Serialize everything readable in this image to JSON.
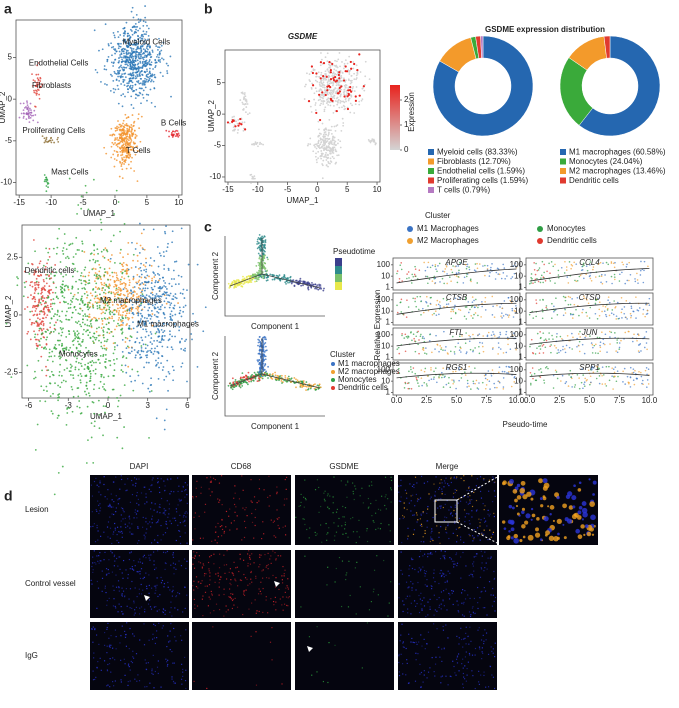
{
  "panel_labels": [
    "a",
    "b",
    "c",
    "d"
  ],
  "chart_data": [
    {
      "type": "umap",
      "xlabel": "UMAP_1",
      "ylabel": "UMAP_2",
      "xlim": [
        -15.5,
        10.5
      ],
      "ylim": [
        -11.5,
        9.5
      ],
      "xticks": [
        -15,
        -10,
        -5,
        0,
        5,
        10
      ],
      "yticks": [
        -10,
        -5,
        0,
        5
      ],
      "clusters": [
        {
          "name": "Myeloid Cells",
          "color": "#2b77b7"
        },
        {
          "name": "Endothelial Cells",
          "color": "#e0433b"
        },
        {
          "name": "Fibroblasts",
          "color": "#a565b8"
        },
        {
          "name": "Proliferating Cells",
          "color": "#8c6d31"
        },
        {
          "name": "T Cells",
          "color": "#f2922c"
        },
        {
          "name": "B Cells",
          "color": "#e3262d"
        },
        {
          "name": "Mast Cells",
          "color": "#2ca342"
        }
      ]
    },
    {
      "type": "umap",
      "xlabel": "UMAP_1",
      "ylabel": "UMAP_2",
      "xlim": [
        -6.5,
        6.2
      ],
      "ylim": [
        -3.6,
        3.9
      ],
      "xticks": [
        -6,
        -3,
        0,
        3,
        6
      ],
      "yticks": [
        -2.5,
        0,
        2.5
      ],
      "clusters": [
        {
          "name": "Dendritic cells",
          "color": "#e0433b"
        },
        {
          "name": "M2 macrophages",
          "color": "#f2922c"
        },
        {
          "name": "M1 macrophages",
          "color": "#2b77b7"
        },
        {
          "name": "Monocytes",
          "color": "#37a83f"
        }
      ]
    },
    {
      "type": "feature",
      "title": "GSDME",
      "xlabel": "UMAP_1",
      "ylabel": "UMAP_2",
      "xlim": [
        -15.5,
        10.5
      ],
      "ylim": [
        -10.8,
        10.2
      ],
      "xticks": [
        -15,
        -10,
        -5,
        0,
        5,
        10
      ],
      "yticks": [
        -10,
        -5,
        0,
        5
      ],
      "colorbar_label": "Expression",
      "colorbar_lim": [
        0,
        2.6
      ],
      "colorbar_ticks": [
        0,
        1,
        2
      ],
      "colors": [
        "#d4d4d4",
        "#e8231e"
      ]
    },
    {
      "type": "donut",
      "title": "GSDME expression distribution",
      "categories": [
        "Myeloid cells (83.33%)",
        "Fibroblasts (12.70%)",
        "Endothelial cells (1.59%)",
        "Proliferating cells (1.59%)",
        "T cells (0.79%)"
      ],
      "values": [
        83.33,
        12.7,
        1.59,
        1.59,
        0.79
      ],
      "colors": [
        "#2567b0",
        "#f39a2b",
        "#3aaa3a",
        "#e03a2f",
        "#b57ac2"
      ]
    },
    {
      "type": "donut",
      "categories": [
        "M1 macrophages (60.58%)",
        "Monocytes (24.04%)",
        "M2 macrophages (13.46%)",
        "Dendritic cells"
      ],
      "values": [
        60.58,
        24.04,
        13.46,
        1.92
      ],
      "colors": [
        "#2567b0",
        "#3aaa3a",
        "#f39a2b",
        "#e03a2f"
      ]
    },
    {
      "type": "trajectory",
      "xlabel": "Component 1",
      "ylabel": "Component 2",
      "colorbar_label": "Pseudotime"
    },
    {
      "type": "trajectory",
      "xlabel": "Component 1",
      "ylabel": "Component 2",
      "legend_title": "Cluster",
      "categories": [
        "M1 macrophages",
        "M2 macrophages",
        "Monocytes",
        "Dendritic cells"
      ],
      "colors": [
        "#3b73c4",
        "#f0a030",
        "#2f9e44",
        "#e03a2f"
      ]
    },
    {
      "type": "genes",
      "legend_title": "Cluster",
      "categories": [
        "M1 Macrophages",
        "Monocytes",
        "M2 Macrophages",
        "Dendritic cells"
      ],
      "colors": [
        "#3b73c4",
        "#2f9e44",
        "#f0a030",
        "#e03a2f"
      ],
      "genes": [
        "APOE",
        "CCL4",
        "CTSB",
        "CTSD",
        "FTL",
        "JUN",
        "RGS1",
        "SPP1"
      ],
      "xlabel": "Pseudo-time",
      "ylabel": "Relative Expression",
      "xlim": [
        -0.3,
        10.3
      ],
      "xticks": [
        {
          "value": 0,
          "label": "0.0"
        },
        {
          "value": 2.5,
          "label": "2.5"
        },
        {
          "value": 5,
          "label": "5.0"
        },
        {
          "value": 7.5,
          "label": "7.5"
        },
        {
          "value": 10,
          "label": "10.0"
        }
      ],
      "ylim": [
        0.6,
        400
      ],
      "yticks": [
        1,
        10,
        100
      ],
      "log_y": true
    }
  ],
  "microscopy": {
    "columns": [
      "DAPI",
      "CD68",
      "GSDME",
      "Merge"
    ],
    "column_colors": [
      "#2a35d8",
      "#d2232a",
      "#2a9a3a",
      "#f0a020"
    ],
    "rows": [
      "Lesion",
      "Control vessel",
      "IgG"
    ]
  }
}
